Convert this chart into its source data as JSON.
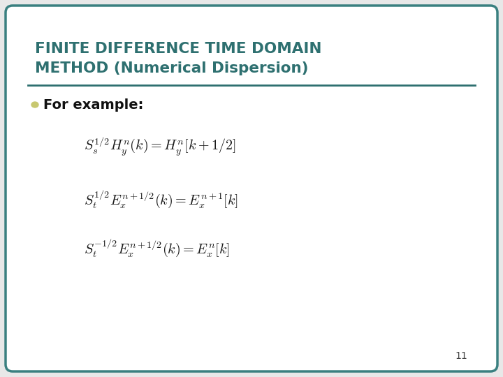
{
  "title_line1": "FINITE DIFFERENCE TIME DOMAIN",
  "title_line2": "METHOD (Numerical Dispersion)",
  "title_color": "#2E7070",
  "background_color": "#E8E8E8",
  "slide_bg": "#FFFFFF",
  "border_color": "#3A8080",
  "bullet_text": "For example:",
  "bullet_color": "#C8C870",
  "slide_number": "11",
  "eq_color": "#1a1a1a",
  "divider_color": "#2E7070",
  "figsize": [
    7.2,
    5.4
  ],
  "dpi": 100
}
